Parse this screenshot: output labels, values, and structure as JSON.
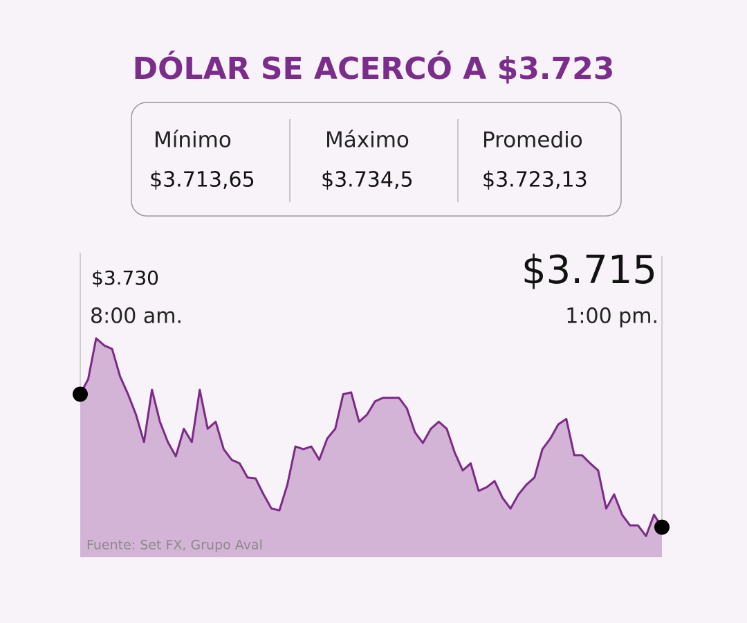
{
  "header": {
    "title": "DÓLAR SE ACERCÓ A $3.723"
  },
  "stats": [
    {
      "label": "Mínimo",
      "value": "$3.713,65"
    },
    {
      "label": "Máximo",
      "value": "$3.734,5"
    },
    {
      "label": "Promedio",
      "value": "$3.723,13"
    }
  ],
  "chart_data": {
    "type": "area",
    "source": "Fuente: Set FX, Grupo Aval",
    "color": "#7b2a86",
    "fill": "#d4b4d6",
    "ylim": [
      3712,
      3738
    ],
    "categories": [
      "8:00 am.",
      null,
      null,
      null,
      null,
      null,
      null,
      null,
      null,
      null,
      null,
      null,
      null,
      null,
      null,
      null,
      null,
      null,
      null,
      null,
      null,
      null,
      null,
      null,
      null,
      null,
      null,
      null,
      null,
      null,
      null,
      null,
      null,
      null,
      null,
      null,
      null,
      null,
      null,
      null,
      null,
      null,
      null,
      null,
      null,
      null,
      null,
      null,
      null,
      null,
      null,
      null,
      null,
      null,
      null,
      null,
      null,
      null,
      null,
      null,
      null,
      null,
      null,
      null,
      null,
      null,
      null,
      null,
      null,
      null,
      null,
      null,
      null,
      "1:00 pm."
    ],
    "values": [
      3730,
      3731.7,
      3736.3,
      3735.5,
      3735.1,
      3732,
      3730,
      3727.7,
      3724.6,
      3730.5,
      3726.9,
      3724.6,
      3723,
      3726.1,
      3724.6,
      3730.5,
      3726.1,
      3726.9,
      3723.8,
      3722.6,
      3722.2,
      3720.6,
      3720.5,
      3718.7,
      3717.1,
      3716.9,
      3719.8,
      3724.1,
      3723.8,
      3724.1,
      3722.6,
      3725,
      3726.1,
      3730,
      3730.2,
      3726.9,
      3727.7,
      3729.2,
      3729.6,
      3729.6,
      3729.6,
      3728.4,
      3725.7,
      3724.5,
      3726.1,
      3726.9,
      3726.1,
      3723.4,
      3721.4,
      3722.2,
      3719.1,
      3719.5,
      3720.2,
      3718.3,
      3717.1,
      3718.7,
      3719.8,
      3720.6,
      3723.8,
      3725,
      3726.6,
      3727.2,
      3723.1,
      3723.1,
      3722.2,
      3721.4,
      3717.1,
      3718.7,
      3716.4,
      3715.2,
      3715.2,
      3714,
      3716.4,
      3715
    ],
    "value_labels": [
      "$3.730",
      null,
      null,
      null,
      null,
      null,
      null,
      null,
      null,
      null,
      null,
      null,
      null,
      null,
      null,
      null,
      null,
      null,
      null,
      null,
      null,
      null,
      null,
      null,
      null,
      null,
      null,
      null,
      null,
      null,
      null,
      null,
      null,
      null,
      null,
      null,
      null,
      null,
      null,
      null,
      null,
      null,
      null,
      null,
      null,
      null,
      null,
      null,
      null,
      null,
      null,
      null,
      null,
      null,
      null,
      null,
      null,
      null,
      null,
      null,
      null,
      null,
      null,
      null,
      null,
      null,
      null,
      null,
      null,
      null,
      null,
      null,
      null,
      "$3.715"
    ]
  }
}
